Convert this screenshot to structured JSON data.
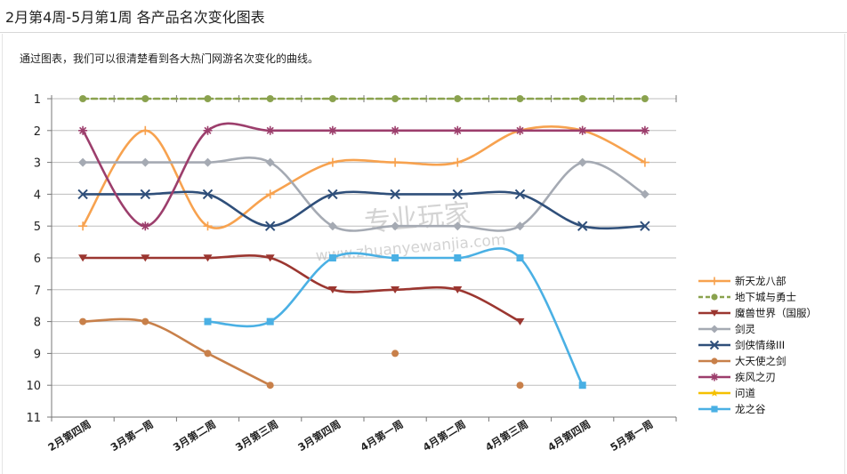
{
  "page": {
    "title": "2月第4周-5月第1周 各产品名次变化图表",
    "description": "通过图表，我们可以很清楚看到各大热门网游名次变化的曲线。",
    "watermark_cn": "专业玩家",
    "watermark_url": "www.zhuanyewanjia.com"
  },
  "chart_data": {
    "type": "line",
    "categories": [
      "2月第四周",
      "3月第一周",
      "3月第二周",
      "3月第三周",
      "3月第四周",
      "4月第一周",
      "4月第二周",
      "4月第三周",
      "4月第四周",
      "5月第一周"
    ],
    "ylim": [
      1,
      11
    ],
    "y_inverted": true,
    "yticks": [
      "1",
      "2",
      "3",
      "4",
      "5",
      "6",
      "7",
      "8",
      "9",
      "10",
      "11"
    ],
    "grid": true,
    "legend_position": "right",
    "series": [
      {
        "name": "新天龙八部",
        "color": "#f7a24f",
        "marker": "plus",
        "dashed": false,
        "values": [
          5,
          2,
          5,
          4,
          3,
          3,
          3,
          2,
          2,
          3
        ]
      },
      {
        "name": "地下城与勇士",
        "color": "#8aa24e",
        "marker": "circle",
        "dashed": true,
        "values": [
          1,
          1,
          1,
          1,
          1,
          1,
          1,
          1,
          1,
          1
        ]
      },
      {
        "name": "魔兽世界（国服）",
        "color": "#9b3630",
        "marker": "triangle-down",
        "dashed": false,
        "values": [
          6,
          6,
          6,
          6,
          7,
          7,
          7,
          8,
          null,
          null
        ]
      },
      {
        "name": "剑灵",
        "color": "#a5aab3",
        "marker": "diamond",
        "dashed": false,
        "values": [
          3,
          3,
          3,
          3,
          5,
          5,
          5,
          5,
          3,
          4
        ]
      },
      {
        "name": "剑侠情缘III",
        "color": "#2f4f7a",
        "marker": "x",
        "dashed": false,
        "values": [
          4,
          4,
          4,
          5,
          4,
          4,
          4,
          4,
          5,
          5
        ]
      },
      {
        "name": "大天使之剑",
        "color": "#c8804a",
        "marker": "circle",
        "dashed": false,
        "values": [
          8,
          8,
          9,
          10,
          null,
          9,
          null,
          10,
          null,
          null
        ]
      },
      {
        "name": "疾风之刃",
        "color": "#9c3e6c",
        "marker": "asterisk",
        "dashed": false,
        "values": [
          2,
          5,
          2,
          2,
          2,
          2,
          2,
          2,
          2,
          2
        ]
      },
      {
        "name": "问道",
        "color": "#f5c000",
        "marker": "star",
        "dashed": false,
        "values": [
          null,
          null,
          null,
          null,
          null,
          null,
          null,
          null,
          null,
          null
        ]
      },
      {
        "name": "龙之谷",
        "color": "#4ab0e4",
        "marker": "square",
        "dashed": false,
        "values": [
          null,
          null,
          8,
          8,
          6,
          6,
          6,
          6,
          10,
          null
        ]
      }
    ]
  }
}
